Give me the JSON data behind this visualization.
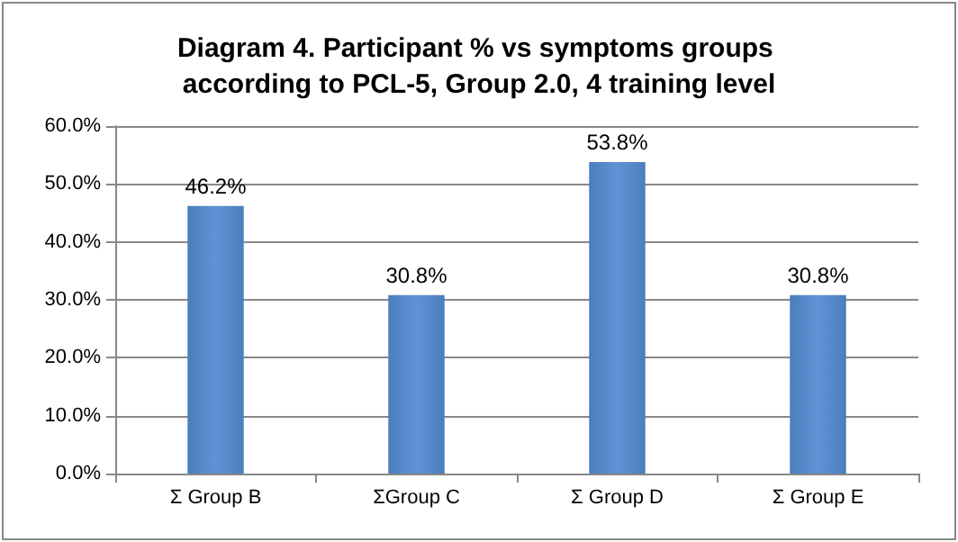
{
  "chart_data": {
    "type": "bar",
    "title": "Diagram 4. Participant % vs symptoms groups according to PCL-5, Group 2.0, 4 training level",
    "categories": [
      "Σ Group B",
      "ΣGroup C",
      "Σ Group D",
      "Σ Group E"
    ],
    "values": [
      46.2,
      30.8,
      53.8,
      30.8
    ],
    "value_labels": [
      "46.2%",
      "30.8%",
      "53.8%",
      "30.8%"
    ],
    "color": "#4a7ebb",
    "ylim": [
      0,
      60
    ],
    "yticks": [
      {
        "value": 0,
        "label": "0.0%"
      },
      {
        "value": 10,
        "label": "10.0%"
      },
      {
        "value": 20,
        "label": "20.0%"
      },
      {
        "value": 30,
        "label": "30.0%"
      },
      {
        "value": 40,
        "label": "40.0%"
      },
      {
        "value": 50,
        "label": "50.0%"
      },
      {
        "value": 60,
        "label": "60.0%"
      }
    ],
    "grid": "y"
  }
}
